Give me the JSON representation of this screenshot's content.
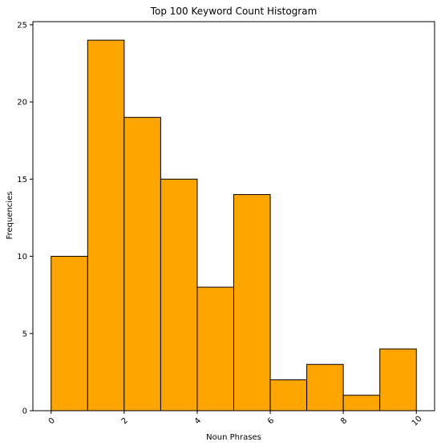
{
  "chart_data": {
    "type": "bar",
    "title": "Top 100 Keyword Count Histogram",
    "xlabel": "Noun Phrases",
    "ylabel": "Frequencies",
    "bins": [
      {
        "x0": 0,
        "x1": 1,
        "count": 10
      },
      {
        "x0": 1,
        "x1": 2,
        "count": 24
      },
      {
        "x0": 2,
        "x1": 3,
        "count": 19
      },
      {
        "x0": 3,
        "x1": 4,
        "count": 15
      },
      {
        "x0": 4,
        "x1": 5,
        "count": 8
      },
      {
        "x0": 5,
        "x1": 6,
        "count": 14
      },
      {
        "x0": 6,
        "x1": 7,
        "count": 2
      },
      {
        "x0": 7,
        "x1": 8,
        "count": 3
      },
      {
        "x0": 8,
        "x1": 9,
        "count": 1
      },
      {
        "x0": 9,
        "x1": 10,
        "count": 4
      }
    ],
    "xlim": [
      -0.5,
      10.5
    ],
    "ylim": [
      0,
      25.2
    ],
    "xticks": [
      0,
      2,
      4,
      6,
      8,
      10
    ],
    "yticks": [
      0,
      5,
      10,
      15,
      20,
      25
    ],
    "xtick_rotation_deg": 45,
    "grid": false,
    "legend": "none",
    "colors": {
      "bar_fill": "#ffa500",
      "bar_edge": "#000000",
      "axes": "#000000",
      "background": "#ffffff"
    }
  }
}
